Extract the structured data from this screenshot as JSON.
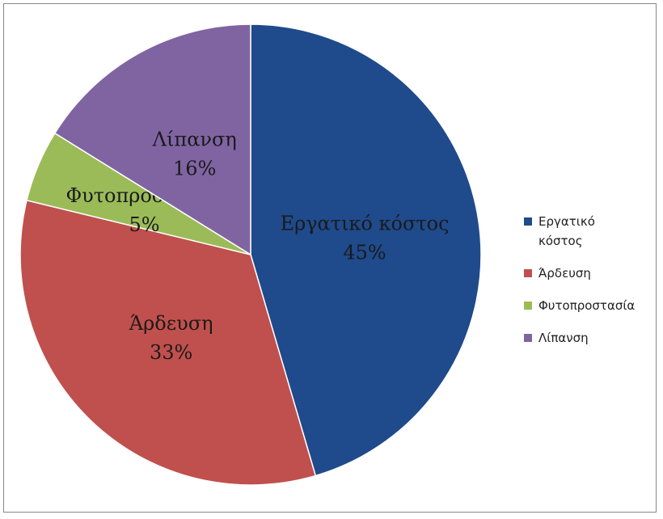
{
  "chart_data": {
    "type": "pie",
    "categories": [
      "Εργατικό κόστος",
      "Άρδευση",
      "Φυτοπροστασία",
      "Λίπανση"
    ],
    "values": [
      45,
      33,
      5,
      16
    ],
    "value_labels": [
      "45%",
      "33%",
      "5%",
      "16%"
    ],
    "colors": [
      "#1f4a8c",
      "#c0504d",
      "#9bbb59",
      "#8064a2"
    ],
    "legend": "right"
  }
}
